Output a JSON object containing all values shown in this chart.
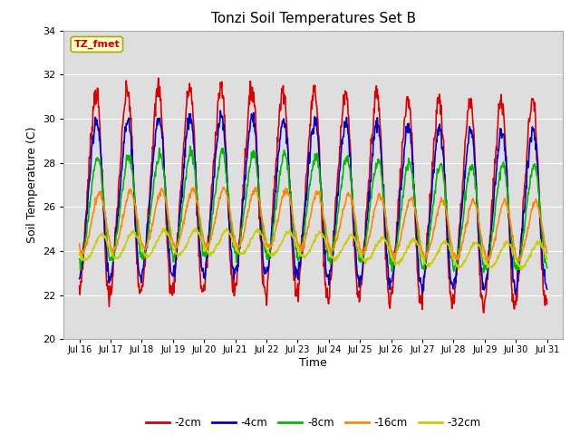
{
  "title": "Tonzi Soil Temperatures Set B",
  "xlabel": "Time",
  "ylabel": "Soil Temperature (C)",
  "ylim": [
    20,
    34
  ],
  "xlim_days": [
    15.5,
    31.5
  ],
  "annotation_text": "TZ_fmet",
  "annotation_box_facecolor": "#ffffcc",
  "annotation_box_edgecolor": "#aaaa00",
  "annotation_text_color": "#cc0000",
  "series_labels": [
    "-2cm",
    "-4cm",
    "-8cm",
    "-16cm",
    "-32cm"
  ],
  "series_colors": [
    "#dd0000",
    "#0000cc",
    "#00bb00",
    "#ff8800",
    "#cccc00"
  ],
  "series_linewidths": [
    1.2,
    1.2,
    1.2,
    1.2,
    1.2
  ],
  "fig_facecolor": "#ffffff",
  "plot_bg_color": "#dedede",
  "grid_color": "#ffffff",
  "yticks": [
    20,
    22,
    24,
    26,
    28,
    30,
    32,
    34
  ],
  "xtick_labels": [
    "Jul 16",
    "Jul 17",
    "Jul 18",
    "Jul 19",
    "Jul 20",
    "Jul 21",
    "Jul 22",
    "Jul 23",
    "Jul 24",
    "Jul 25",
    "Jul 26",
    "Jul 27",
    "Jul 28",
    "Jul 29",
    "Jul 30",
    "Jul 31"
  ],
  "xtick_positions": [
    16,
    17,
    18,
    19,
    20,
    21,
    22,
    23,
    24,
    25,
    26,
    27,
    28,
    29,
    30,
    31
  ],
  "n_points": 960,
  "start_day": 16,
  "end_day": 31
}
